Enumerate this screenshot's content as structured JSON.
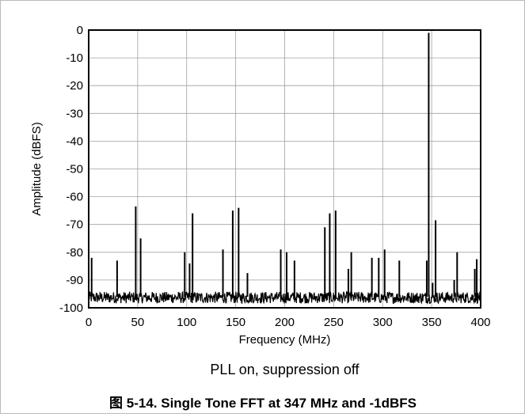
{
  "chart_data": {
    "type": "line",
    "xlabel": "Frequency (MHz)",
    "ylabel": "Amplitude (dBFS)",
    "xlim": [
      0,
      400
    ],
    "ylim": [
      -100,
      0
    ],
    "x_ticks": [
      0,
      50,
      100,
      150,
      200,
      250,
      300,
      350,
      400
    ],
    "y_ticks": [
      0,
      -10,
      -20,
      -30,
      -40,
      -50,
      -60,
      -70,
      -80,
      -90,
      -100
    ],
    "grid": true,
    "noise_floor": -96,
    "spurs": [
      {
        "x": 3,
        "y": -82
      },
      {
        "x": 29,
        "y": -83
      },
      {
        "x": 48,
        "y": -63.5
      },
      {
        "x": 53,
        "y": -75
      },
      {
        "x": 98,
        "y": -80
      },
      {
        "x": 103,
        "y": -84
      },
      {
        "x": 106,
        "y": -66
      },
      {
        "x": 137,
        "y": -79
      },
      {
        "x": 147,
        "y": -65
      },
      {
        "x": 153,
        "y": -64
      },
      {
        "x": 162,
        "y": -87.5
      },
      {
        "x": 196,
        "y": -79
      },
      {
        "x": 202,
        "y": -80
      },
      {
        "x": 210,
        "y": -83
      },
      {
        "x": 241,
        "y": -71
      },
      {
        "x": 246,
        "y": -66
      },
      {
        "x": 252,
        "y": -65
      },
      {
        "x": 265,
        "y": -86
      },
      {
        "x": 268,
        "y": -80
      },
      {
        "x": 289,
        "y": -82
      },
      {
        "x": 296,
        "y": -82
      },
      {
        "x": 302,
        "y": -79
      },
      {
        "x": 317,
        "y": -83
      },
      {
        "x": 345,
        "y": -83
      },
      {
        "x": 347,
        "y": -1
      },
      {
        "x": 351,
        "y": -91
      },
      {
        "x": 354,
        "y": -68.5
      },
      {
        "x": 373,
        "y": -90
      },
      {
        "x": 376,
        "y": -80
      },
      {
        "x": 394,
        "y": -86
      },
      {
        "x": 396,
        "y": -82.5
      }
    ]
  },
  "subtitle": "PLL on, suppression off",
  "title": "图 5-14. Single Tone FFT at 347 MHz and -1dBFS"
}
